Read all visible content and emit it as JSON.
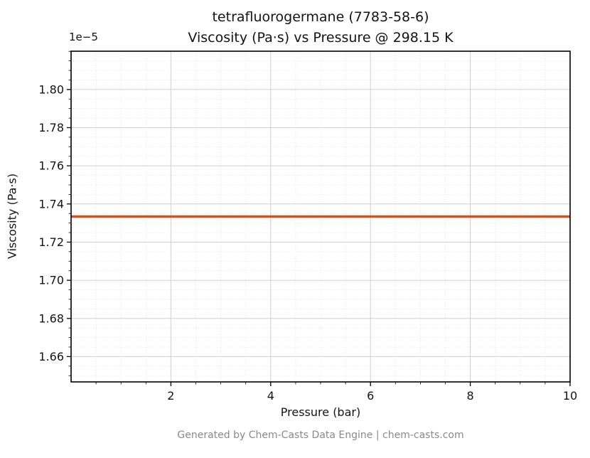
{
  "chart_data": {
    "type": "line",
    "title_line1": "tetrafluorogermane (7783-58-6)",
    "title_line2": "Viscosity (Pa·s) vs Pressure @ 298.15 K",
    "xlabel": "Pressure (bar)",
    "ylabel": "Viscosity (Pa·s)",
    "y_offset_label": "1e−5",
    "footer": "Generated by Chem-Casts Data Engine | chem-casts.com",
    "xlim": [
      0,
      10
    ],
    "ylim_e5": [
      1.64673,
      1.82007
    ],
    "x_tick_values": [
      2,
      4,
      6,
      8,
      10
    ],
    "x_tick_labels": [
      "2",
      "4",
      "6",
      "8",
      "10"
    ],
    "y_tick_values": [
      1.66,
      1.68,
      1.7,
      1.72,
      1.74,
      1.76,
      1.78,
      1.8
    ],
    "y_tick_labels": [
      "1.66",
      "1.68",
      "1.70",
      "1.72",
      "1.74",
      "1.76",
      "1.78",
      "1.80"
    ],
    "x_minor_step": 0.5,
    "y_minor_step": 0.005,
    "series": [
      {
        "name": "viscosity",
        "x": [
          0,
          10
        ],
        "y_e5": [
          1.7334,
          1.7334
        ],
        "y_value_pa_s": 1.7334e-05,
        "color": "#d2521c",
        "linewidth": 3.5
      }
    ],
    "grid": {
      "major_color": "#d0d0d0",
      "minor_color": "#dedede"
    },
    "axis_color": "#000000",
    "legend": "none",
    "grid_on": true
  }
}
